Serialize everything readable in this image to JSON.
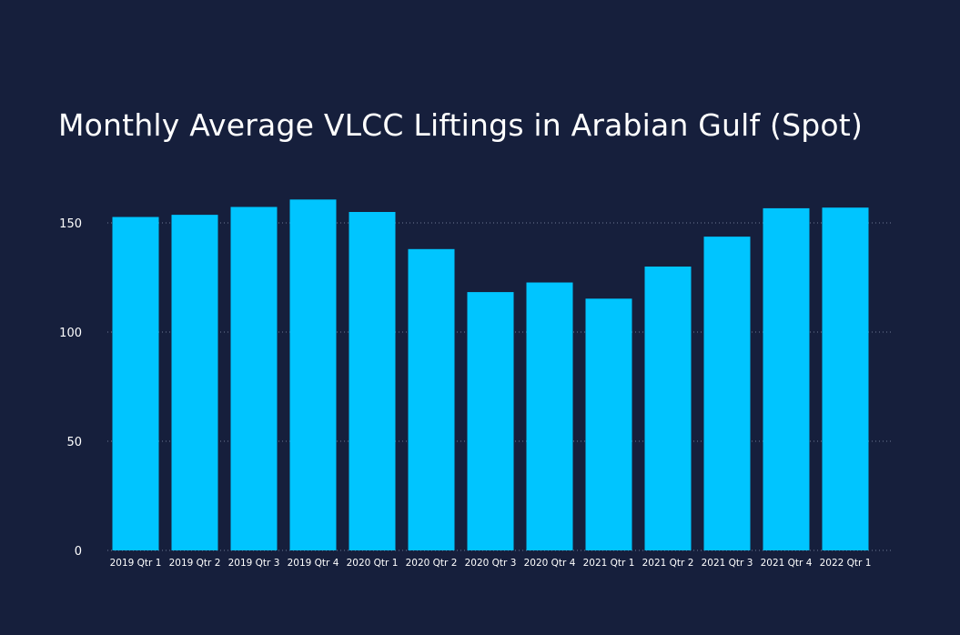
{
  "chart_data": {
    "type": "bar",
    "title": "Monthly Average VLCC Liftings in Arabian Gulf (Spot)",
    "xlabel": "",
    "ylabel": "",
    "categories": [
      "2019 Qtr 1",
      "2019 Qtr 2",
      "2019 Qtr 3",
      "2019 Qtr 4",
      "2020 Qtr 1",
      "2020 Qtr 2",
      "2020 Qtr 3",
      "2020 Qtr 4",
      "2021 Qtr 1",
      "2021 Qtr 2",
      "2021 Qtr 3",
      "2021 Qtr 4",
      "2022 Qtr 1"
    ],
    "values": [
      152.7,
      153.7,
      157.3,
      160.7,
      155.0,
      138.0,
      118.3,
      122.7,
      115.3,
      130.0,
      143.7,
      156.7,
      157.0
    ],
    "yticks": [
      0,
      50,
      100,
      150
    ],
    "ylim": [
      0,
      175
    ],
    "grid": true,
    "colors": {
      "background": "#161f3c",
      "bar": "#00c5ff",
      "text": "#ffffff",
      "grid": "#6f7893"
    }
  }
}
